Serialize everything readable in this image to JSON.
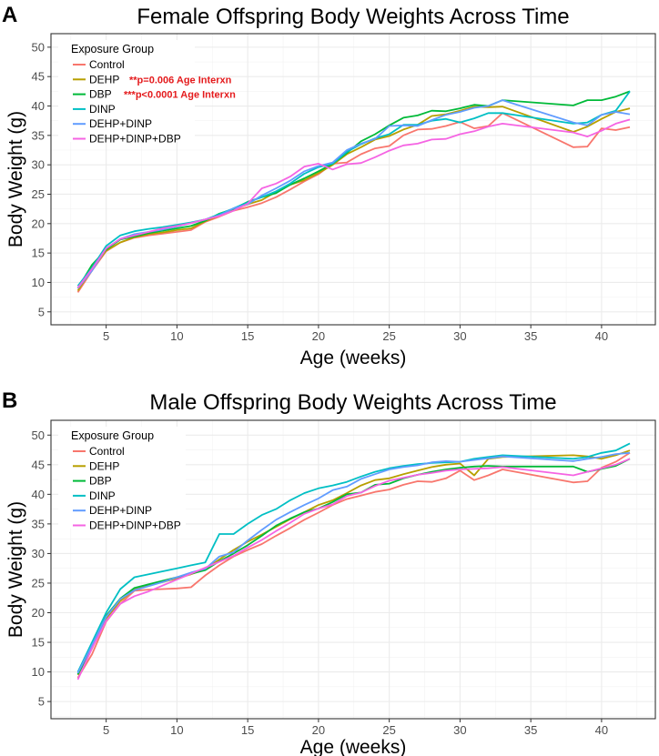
{
  "colors": {
    "Control": "#F8766D",
    "DEHP": "#B79F00",
    "DBP": "#00BA38",
    "DINP": "#00BFC4",
    "DEHP+DINP": "#619CFF",
    "DEHP+DINP+DBP": "#F564E3"
  },
  "chart_data": [
    {
      "type": "line",
      "panel_label": "A",
      "title": "Female Offspring Body Weights Across Time",
      "xlabel": "Age (weeks)",
      "ylabel": "Body Weight (g)",
      "xlim": [
        1.1,
        43.8
      ],
      "ylim": [
        2.8,
        52.3
      ],
      "xticks": [
        5,
        10,
        15,
        20,
        25,
        30,
        35,
        40
      ],
      "yticks": [
        5,
        10,
        15,
        20,
        25,
        30,
        35,
        40,
        45,
        50
      ],
      "grid": true,
      "legend": {
        "title": "Exposure Group",
        "placement": "top-left"
      },
      "annotations": {
        "DEHP": "**p=0.006 Age Interxn",
        "DBP": "***p<0.0001 Age Interxn"
      },
      "x": [
        3,
        4,
        5,
        6,
        7,
        8,
        9,
        10,
        11,
        12,
        13,
        14,
        15,
        16,
        17,
        18,
        19,
        20,
        21,
        22,
        23,
        24,
        25,
        26,
        27,
        28,
        29,
        30,
        31,
        32,
        33,
        38,
        39,
        40,
        41,
        42
      ],
      "series": [
        {
          "name": "Control",
          "values": [
            8.3,
            12,
            15.3,
            16.8,
            17.6,
            18,
            18.3,
            18.6,
            18.9,
            20.3,
            21.2,
            22.2,
            22.8,
            23.5,
            24.5,
            25.8,
            27.2,
            28.4,
            30.2,
            30.4,
            31.8,
            32.8,
            33.2,
            35,
            36,
            36.1,
            36.6,
            37.3,
            36.2,
            36.6,
            38.8,
            33,
            33.1,
            36.2,
            35.9,
            36.4
          ]
        },
        {
          "name": "DEHP",
          "values": [
            8.6,
            12.3,
            15.4,
            16.8,
            17.7,
            18.2,
            18.5,
            18.9,
            19.2,
            20.4,
            21.4,
            22.4,
            23.3,
            24,
            25.4,
            26.6,
            27.4,
            28.6,
            30,
            31.8,
            33,
            34.3,
            34.9,
            36,
            36.8,
            38.3,
            38.6,
            39.2,
            39.9,
            39.8,
            39.9,
            35.6,
            36.5,
            37.8,
            39,
            39.6
          ]
        },
        {
          "name": "DBP",
          "values": [
            9,
            13,
            15.6,
            17.3,
            17.8,
            18.4,
            18.8,
            19.2,
            19.6,
            20.5,
            21.7,
            22.5,
            23.7,
            24.5,
            25.2,
            26.6,
            27.7,
            28.9,
            30.2,
            32,
            34,
            35.2,
            36.7,
            38,
            38.4,
            39.2,
            39.1,
            39.6,
            40.2,
            40,
            41,
            40.1,
            41,
            41,
            41.6,
            42.5
          ]
        },
        {
          "name": "DINP",
          "values": [
            9.4,
            12.5,
            16.2,
            18,
            18.7,
            19.1,
            19.4,
            19.8,
            20.2,
            20.7,
            21.6,
            22.6,
            23.6,
            24.5,
            25.5,
            26.8,
            28.5,
            29.6,
            30.2,
            32.2,
            33.5,
            34.5,
            35.2,
            36.8,
            36.8,
            37.5,
            37.8,
            37.2,
            37.9,
            38.8,
            38.8,
            37,
            37.2,
            38.5,
            39.2,
            42.5
          ]
        },
        {
          "name": "DEHP+DINP",
          "values": [
            9,
            12,
            15.8,
            17.4,
            18.2,
            18.6,
            19,
            19.5,
            20.1,
            20.7,
            21.4,
            22.6,
            23.3,
            24.8,
            26,
            27.3,
            28.9,
            29.8,
            30.4,
            32.5,
            33.6,
            34.4,
            36.6,
            36.7,
            36.6,
            37.6,
            38.5,
            39,
            39.7,
            40,
            41,
            37.2,
            36.7,
            38.5,
            39,
            38.6
          ]
        },
        {
          "name": "DEHP+DINP+DBP",
          "values": [
            9.1,
            12.3,
            15.8,
            17.4,
            18,
            18.6,
            19.2,
            19.6,
            20.1,
            20.7,
            21.3,
            22.2,
            23.4,
            26,
            26.8,
            28,
            29.7,
            30.2,
            29.2,
            30.1,
            30.3,
            31.3,
            32.4,
            33.3,
            33.6,
            34.3,
            34.4,
            35.2,
            35.7,
            36.5,
            37,
            35.5,
            34.8,
            35.8,
            37,
            37.7
          ]
        }
      ]
    },
    {
      "type": "line",
      "panel_label": "B",
      "title": "Male Offspring Body Weights Across Time",
      "xlabel": "Age (weeks)",
      "ylabel": "Body Weight (g)",
      "xlim": [
        1.1,
        43.8
      ],
      "ylim": [
        2.1,
        52.5
      ],
      "xticks": [
        5,
        10,
        15,
        20,
        25,
        30,
        35,
        40
      ],
      "yticks": [
        5,
        10,
        15,
        20,
        25,
        30,
        35,
        40,
        45,
        50
      ],
      "grid": true,
      "legend": {
        "title": "Exposure Group",
        "placement": "top-left"
      },
      "x": [
        3,
        4,
        5,
        6,
        7,
        8,
        9,
        10,
        11,
        12,
        13,
        14,
        15,
        16,
        17,
        18,
        19,
        20,
        21,
        22,
        23,
        24,
        25,
        26,
        27,
        28,
        29,
        30,
        31,
        32,
        33,
        38,
        39,
        40,
        41,
        42
      ],
      "series": [
        {
          "name": "Control",
          "values": [
            9,
            13,
            18.5,
            21.5,
            23.7,
            23.9,
            24,
            24.1,
            24.3,
            26.3,
            28,
            29.5,
            30.6,
            31.6,
            33,
            34.3,
            35.7,
            36.9,
            38.2,
            39.2,
            39.8,
            40.4,
            40.8,
            41.6,
            42.2,
            42.1,
            42.7,
            44,
            42.4,
            43.2,
            44.2,
            42,
            42.2,
            44.5,
            45.5,
            47
          ]
        },
        {
          "name": "DEHP",
          "values": [
            9.5,
            14,
            19,
            22,
            23.9,
            24.6,
            25.2,
            25.8,
            26.5,
            27.3,
            29,
            30.6,
            32,
            33.2,
            34.5,
            35.8,
            37,
            38.2,
            39,
            40.2,
            41.5,
            42.4,
            42.7,
            43.4,
            44,
            44.6,
            45,
            45.2,
            43.2,
            46,
            46.3,
            46.6,
            46.4,
            46,
            46.6,
            47.4
          ]
        },
        {
          "name": "DBP",
          "values": [
            9.6,
            14,
            19.5,
            22.4,
            24.2,
            24.8,
            25.4,
            26,
            26.6,
            27.2,
            28.7,
            30,
            31.4,
            33,
            34.7,
            35.9,
            37,
            37.6,
            38.7,
            40,
            40.3,
            41.6,
            41.8,
            42.7,
            43.3,
            43.8,
            44.2,
            44.5,
            44.7,
            44.8,
            44.7,
            44.7,
            43.8,
            44.3,
            44.8,
            46
          ]
        },
        {
          "name": "DINP",
          "values": [
            10,
            15,
            20,
            24,
            26,
            26.5,
            27,
            27.5,
            28,
            28.5,
            33.3,
            33.3,
            35,
            36.5,
            37.5,
            39,
            40.2,
            41,
            41.5,
            42.1,
            43,
            43.8,
            44.4,
            44.8,
            45.1,
            45.3,
            45.4,
            45.5,
            46,
            46.3,
            46.6,
            46,
            46.3,
            47,
            47.4,
            48.6
          ]
        },
        {
          "name": "DEHP+DINP",
          "values": [
            9.8,
            14.5,
            19.3,
            22.3,
            23.8,
            24.5,
            25.2,
            26,
            26.8,
            27.4,
            29.5,
            30.2,
            32.2,
            34,
            35.7,
            37,
            38.2,
            39.3,
            40.7,
            41.3,
            42.6,
            43.4,
            44.2,
            44.6,
            44.9,
            45.4,
            45.6,
            45.5,
            45.8,
            46.1,
            46.4,
            45.6,
            46,
            46.3,
            46.8,
            47
          ]
        },
        {
          "name": "DEHP+DINP+DBP",
          "values": [
            8.7,
            14,
            18.6,
            21.5,
            22.8,
            23.6,
            24.6,
            25.6,
            26.6,
            27.6,
            28.6,
            29.6,
            31,
            32.3,
            33.8,
            35.2,
            36.7,
            37.6,
            38.3,
            39.7,
            40.3,
            41.4,
            42.3,
            42.8,
            43.3,
            43.6,
            44,
            44.2,
            44.3,
            44.4,
            44.6,
            43.2,
            43.8,
            44.4,
            45,
            46
          ]
        }
      ]
    }
  ]
}
